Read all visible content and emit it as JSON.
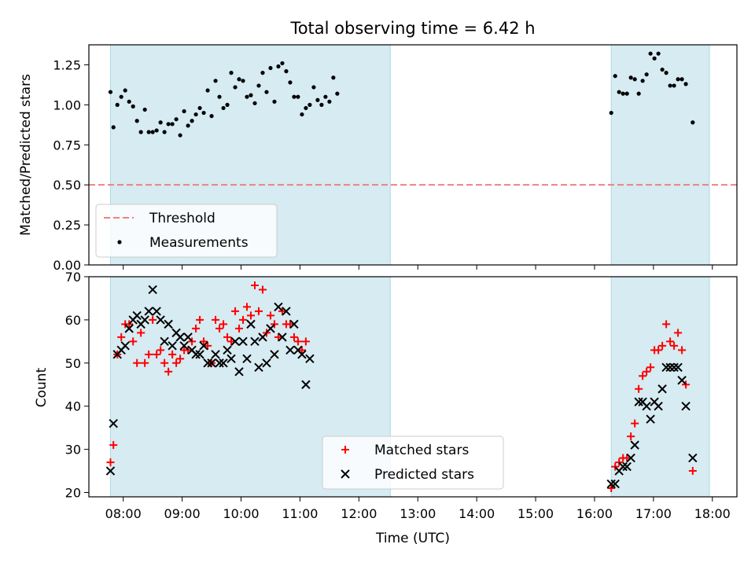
{
  "chart_data": [
    {
      "type": "scatter",
      "title": "Total observing time = 6.42 h",
      "xlabel": "",
      "ylabel": "Matched/Predicted stars",
      "xlim": [
        "07:25",
        "18:25"
      ],
      "ylim": [
        0,
        1.375
      ],
      "yticks": [
        "0.00",
        "0.25",
        "0.50",
        "0.75",
        "1.00",
        "1.25"
      ],
      "observing_windows": [
        {
          "start": "07:47",
          "end": "12:32"
        },
        {
          "start": "16:17",
          "end": "17:57"
        }
      ],
      "threshold": {
        "name": "Threshold",
        "value": 0.5,
        "color": "#f08080"
      },
      "legend": {
        "placement": "lower-left",
        "entries": [
          "Threshold",
          "Measurements"
        ]
      },
      "series": [
        {
          "name": "Measurements",
          "color": "#000000",
          "marker": "dot",
          "points": [
            [
              "07:47",
              1.08
            ],
            [
              "07:50",
              0.86
            ],
            [
              "07:54",
              1.0
            ],
            [
              "07:58",
              1.05
            ],
            [
              "08:02",
              1.09
            ],
            [
              "08:06",
              1.02
            ],
            [
              "08:10",
              0.99
            ],
            [
              "08:14",
              0.9
            ],
            [
              "08:18",
              0.83
            ],
            [
              "08:22",
              0.97
            ],
            [
              "08:26",
              0.83
            ],
            [
              "08:30",
              0.83
            ],
            [
              "08:34",
              0.84
            ],
            [
              "08:38",
              0.89
            ],
            [
              "08:42",
              0.83
            ],
            [
              "08:46",
              0.88
            ],
            [
              "08:50",
              0.88
            ],
            [
              "08:54",
              0.91
            ],
            [
              "08:58",
              0.81
            ],
            [
              "09:02",
              0.96
            ],
            [
              "09:06",
              0.87
            ],
            [
              "09:10",
              0.9
            ],
            [
              "09:14",
              0.94
            ],
            [
              "09:18",
              0.98
            ],
            [
              "09:22",
              0.95
            ],
            [
              "09:26",
              1.09
            ],
            [
              "09:30",
              0.93
            ],
            [
              "09:34",
              1.15
            ],
            [
              "09:38",
              1.05
            ],
            [
              "09:42",
              0.98
            ],
            [
              "09:46",
              1.0
            ],
            [
              "09:50",
              1.2
            ],
            [
              "09:54",
              1.11
            ],
            [
              "09:58",
              1.16
            ],
            [
              "10:02",
              1.15
            ],
            [
              "10:06",
              1.05
            ],
            [
              "10:10",
              1.06
            ],
            [
              "10:14",
              1.01
            ],
            [
              "10:18",
              1.12
            ],
            [
              "10:22",
              1.2
            ],
            [
              "10:26",
              1.08
            ],
            [
              "10:30",
              1.23
            ],
            [
              "10:34",
              1.02
            ],
            [
              "10:38",
              1.24
            ],
            [
              "10:42",
              1.26
            ],
            [
              "10:46",
              1.21
            ],
            [
              "10:50",
              1.14
            ],
            [
              "10:54",
              1.05
            ],
            [
              "10:58",
              1.05
            ],
            [
              "11:02",
              0.94
            ],
            [
              "11:06",
              0.98
            ],
            [
              "11:10",
              1.0
            ],
            [
              "11:14",
              1.11
            ],
            [
              "11:18",
              1.03
            ],
            [
              "11:22",
              1.0
            ],
            [
              "11:26",
              1.05
            ],
            [
              "11:30",
              1.02
            ],
            [
              "11:34",
              1.17
            ],
            [
              "11:38",
              1.07
            ],
            [
              "16:17",
              0.95
            ],
            [
              "16:21",
              1.18
            ],
            [
              "16:25",
              1.08
            ],
            [
              "16:29",
              1.07
            ],
            [
              "16:33",
              1.07
            ],
            [
              "16:37",
              1.17
            ],
            [
              "16:41",
              1.16
            ],
            [
              "16:45",
              1.07
            ],
            [
              "16:49",
              1.15
            ],
            [
              "16:53",
              1.19
            ],
            [
              "16:57",
              1.32
            ],
            [
              "17:01",
              1.29
            ],
            [
              "17:05",
              1.32
            ],
            [
              "17:09",
              1.22
            ],
            [
              "17:13",
              1.2
            ],
            [
              "17:17",
              1.12
            ],
            [
              "17:21",
              1.12
            ],
            [
              "17:25",
              1.16
            ],
            [
              "17:29",
              1.16
            ],
            [
              "17:33",
              1.13
            ],
            [
              "17:40",
              0.89
            ]
          ]
        }
      ]
    },
    {
      "type": "scatter",
      "title": "",
      "xlabel": "Time (UTC)",
      "ylabel": "Count",
      "xlim": [
        "07:25",
        "18:25"
      ],
      "ylim": [
        19,
        70
      ],
      "yticks": [
        "20",
        "30",
        "40",
        "50",
        "60",
        "70"
      ],
      "xticks": [
        "08:00",
        "09:00",
        "10:00",
        "11:00",
        "12:00",
        "13:00",
        "14:00",
        "15:00",
        "16:00",
        "17:00",
        "18:00"
      ],
      "observing_windows": [
        {
          "start": "07:47",
          "end": "12:32"
        },
        {
          "start": "16:17",
          "end": "17:57"
        }
      ],
      "legend": {
        "placement": "lower-center",
        "entries": [
          "Matched stars",
          "Predicted stars"
        ]
      },
      "series": [
        {
          "name": "Matched stars",
          "color": "#ff0000",
          "marker": "plus",
          "points": [
            [
              "07:47",
              27
            ],
            [
              "07:50",
              31
            ],
            [
              "07:54",
              52
            ],
            [
              "07:58",
              56
            ],
            [
              "08:02",
              59
            ],
            [
              "08:06",
              59
            ],
            [
              "08:10",
              55
            ],
            [
              "08:14",
              50
            ],
            [
              "08:18",
              57
            ],
            [
              "08:22",
              50
            ],
            [
              "08:26",
              52
            ],
            [
              "08:30",
              60
            ],
            [
              "08:34",
              52
            ],
            [
              "08:38",
              53
            ],
            [
              "08:42",
              50
            ],
            [
              "08:46",
              48
            ],
            [
              "08:50",
              52
            ],
            [
              "08:54",
              50
            ],
            [
              "08:58",
              51
            ],
            [
              "09:02",
              53
            ],
            [
              "09:06",
              53
            ],
            [
              "09:10",
              55
            ],
            [
              "09:14",
              58
            ],
            [
              "09:18",
              60
            ],
            [
              "09:22",
              55
            ],
            [
              "09:26",
              54
            ],
            [
              "09:30",
              50
            ],
            [
              "09:34",
              60
            ],
            [
              "09:38",
              58
            ],
            [
              "09:42",
              59
            ],
            [
              "09:46",
              56
            ],
            [
              "09:50",
              55
            ],
            [
              "09:54",
              62
            ],
            [
              "09:58",
              58
            ],
            [
              "10:02",
              60
            ],
            [
              "10:06",
              63
            ],
            [
              "10:10",
              61
            ],
            [
              "10:14",
              68
            ],
            [
              "10:18",
              62
            ],
            [
              "10:22",
              67
            ],
            [
              "10:26",
              57
            ],
            [
              "10:30",
              61
            ],
            [
              "10:34",
              59
            ],
            [
              "10:38",
              56
            ],
            [
              "10:42",
              62
            ],
            [
              "10:46",
              59
            ],
            [
              "10:50",
              59
            ],
            [
              "10:54",
              56
            ],
            [
              "10:58",
              55
            ],
            [
              "11:02",
              53
            ],
            [
              "11:06",
              55
            ],
            [
              "16:17",
              21
            ],
            [
              "16:21",
              26
            ],
            [
              "16:25",
              27
            ],
            [
              "16:29",
              28
            ],
            [
              "16:33",
              28
            ],
            [
              "16:37",
              33
            ],
            [
              "16:41",
              36
            ],
            [
              "16:45",
              44
            ],
            [
              "16:49",
              47
            ],
            [
              "16:53",
              48
            ],
            [
              "16:57",
              49
            ],
            [
              "17:01",
              53
            ],
            [
              "17:05",
              53
            ],
            [
              "17:09",
              54
            ],
            [
              "17:13",
              59
            ],
            [
              "17:17",
              55
            ],
            [
              "17:21",
              54
            ],
            [
              "17:25",
              57
            ],
            [
              "17:29",
              53
            ],
            [
              "17:33",
              45
            ],
            [
              "17:40",
              25
            ]
          ]
        },
        {
          "name": "Predicted stars",
          "color": "#000000",
          "marker": "x",
          "points": [
            [
              "07:47",
              25
            ],
            [
              "07:50",
              36
            ],
            [
              "07:54",
              52
            ],
            [
              "07:58",
              53
            ],
            [
              "08:02",
              54
            ],
            [
              "08:06",
              58
            ],
            [
              "08:10",
              60
            ],
            [
              "08:14",
              61
            ],
            [
              "08:18",
              59
            ],
            [
              "08:22",
              60
            ],
            [
              "08:26",
              62
            ],
            [
              "08:30",
              67
            ],
            [
              "08:34",
              62
            ],
            [
              "08:38",
              60
            ],
            [
              "08:42",
              55
            ],
            [
              "08:46",
              59
            ],
            [
              "08:50",
              54
            ],
            [
              "08:54",
              57
            ],
            [
              "08:58",
              56
            ],
            [
              "09:02",
              54
            ],
            [
              "09:06",
              56
            ],
            [
              "09:10",
              53
            ],
            [
              "09:14",
              52
            ],
            [
              "09:18",
              52
            ],
            [
              "09:22",
              54
            ],
            [
              "09:26",
              50
            ],
            [
              "09:30",
              50
            ],
            [
              "09:34",
              52
            ],
            [
              "09:38",
              50
            ],
            [
              "09:42",
              50
            ],
            [
              "09:46",
              53
            ],
            [
              "09:50",
              51
            ],
            [
              "09:54",
              55
            ],
            [
              "09:58",
              48
            ],
            [
              "10:02",
              55
            ],
            [
              "10:06",
              51
            ],
            [
              "10:10",
              59
            ],
            [
              "10:14",
              55
            ],
            [
              "10:18",
              49
            ],
            [
              "10:22",
              56
            ],
            [
              "10:26",
              50
            ],
            [
              "10:30",
              58
            ],
            [
              "10:34",
              52
            ],
            [
              "10:38",
              63
            ],
            [
              "10:42",
              56
            ],
            [
              "10:46",
              62
            ],
            [
              "10:50",
              53
            ],
            [
              "10:54",
              59
            ],
            [
              "10:58",
              53
            ],
            [
              "11:02",
              52
            ],
            [
              "11:06",
              45
            ],
            [
              "11:10",
              51
            ],
            [
              "16:17",
              22
            ],
            [
              "16:21",
              22
            ],
            [
              "16:25",
              25
            ],
            [
              "16:29",
              26
            ],
            [
              "16:33",
              26
            ],
            [
              "16:37",
              28
            ],
            [
              "16:41",
              31
            ],
            [
              "16:45",
              41
            ],
            [
              "16:49",
              41
            ],
            [
              "16:53",
              40
            ],
            [
              "16:57",
              37
            ],
            [
              "17:01",
              41
            ],
            [
              "17:05",
              40
            ],
            [
              "17:09",
              44
            ],
            [
              "17:13",
              49
            ],
            [
              "17:17",
              49
            ],
            [
              "17:21",
              49
            ],
            [
              "17:25",
              49
            ],
            [
              "17:29",
              46
            ],
            [
              "17:33",
              40
            ],
            [
              "17:40",
              28
            ]
          ]
        }
      ]
    }
  ]
}
